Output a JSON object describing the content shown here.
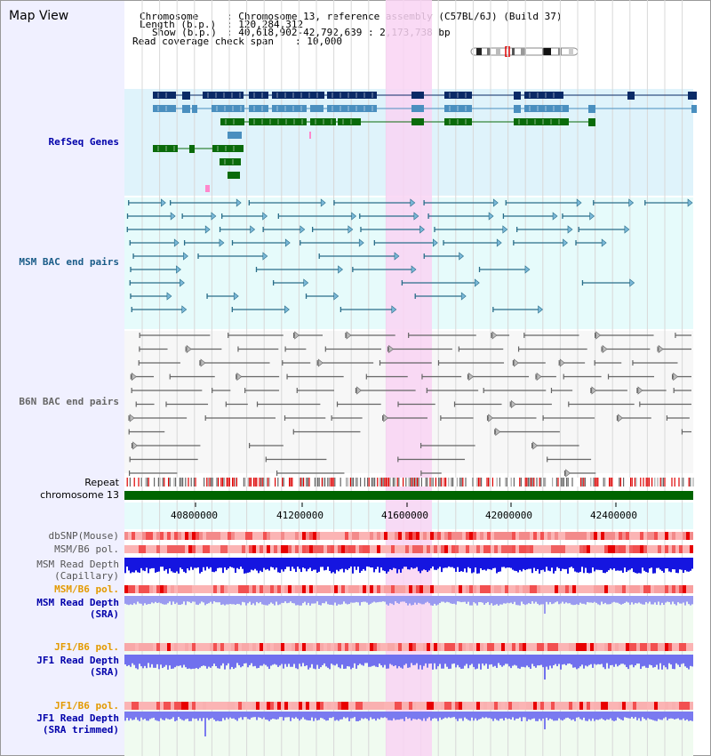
{
  "header": {
    "title": "Map View",
    "chromosome_key": "Chromosome",
    "chromosome_value": ": Chromosome 13, reference assembly (C57BL/6J) (Build 37)",
    "length_key": "Length (b.p.)",
    "length_value": ": 120,284,312",
    "show_key": "Show (b.p.)",
    "show_value": ": 40,618,902-42,792,639 : 2,173,738 bp",
    "coverage_key": "Read coverage check span",
    "coverage_value": ": 10,000"
  },
  "tracks": {
    "refseq": "RefSeq Genes",
    "msm_bac": "MSM BAC end pairs",
    "b6n_bac": "B6N BAC end pairs",
    "repeat": "Repeat",
    "chromosome": "chromosome 13",
    "dbsnp": "dbSNP(Mouse)",
    "msm_b6_pol": "MSM/B6 pol.",
    "msm_read_depth": "MSM Read Depth",
    "capillary": "(Capillary)",
    "msm_b6_pol_2": "MSM/B6 pol.",
    "msm_read_depth_2": "MSM Read Depth",
    "sra": "(SRA)",
    "jf1_b6_pol": "JF1/B6 pol.",
    "jf1_read_depth": "JF1 Read Depth",
    "sra_2": "(SRA)",
    "jf1_b6_pol_2": "JF1/B6 pol.",
    "jf1_read_depth_2": "JF1 Read Depth",
    "sra_trimmed": "(SRA trimmed)"
  },
  "axis": {
    "ticks": [
      "40800000",
      "41200000",
      "41600000",
      "42000000",
      "42400000"
    ]
  },
  "colors": {
    "refseq_bg": "#dff3fb",
    "msm_bg": "#e6fbfb",
    "highlight": "#f9d3f3",
    "gene_dark": "#0a2a66",
    "gene_mid": "#4a8fbf",
    "gene_green": "#0a6b0a",
    "chromosome_bar": "#006400",
    "msm_line": "#2a6e8a",
    "b6n_line": "#666666",
    "label_blue": "#0000aa",
    "label_orange": "#e39a00",
    "label_teal": "#1a5c88"
  }
}
